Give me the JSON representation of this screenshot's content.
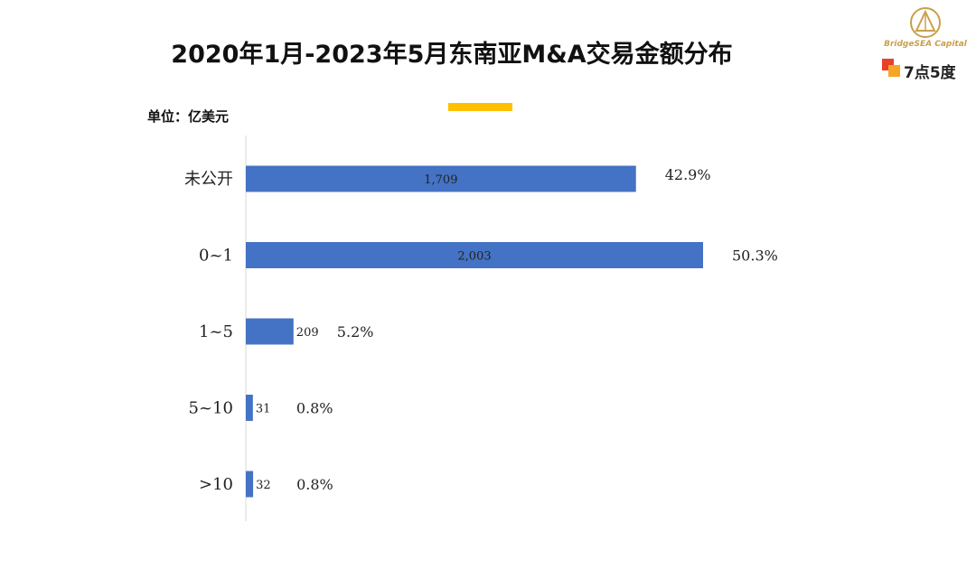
{
  "header": {
    "title": "2020年1月-2023年5月东南亚M&A交易金额分布",
    "unit": "单位：亿美元"
  },
  "logo": {
    "bridgesea_text": "BridgeSEA Capital",
    "seven_text": "7点5度",
    "gold_color": "#C9A04A"
  },
  "colors": {
    "bar": "#4472C4",
    "accent": "#FFC000",
    "axis": "#D9D9D9"
  },
  "chart_data": {
    "type": "bar",
    "orientation": "horizontal",
    "categories": [
      "未公开",
      "0~1",
      "1~5",
      "5~10",
      ">10"
    ],
    "values": [
      1709,
      2003,
      209,
      31,
      32
    ],
    "value_labels": [
      "1,709",
      "2,003",
      "209",
      "31",
      "32"
    ],
    "percent_labels": [
      "42.9%",
      "50.3%",
      "5.2%",
      "0.8%",
      "0.8%"
    ],
    "title": "2020年1月-2023年5月东南亚M&A交易金额分布",
    "xlim": [
      0,
      2003
    ],
    "grid": false,
    "legend": "none"
  }
}
